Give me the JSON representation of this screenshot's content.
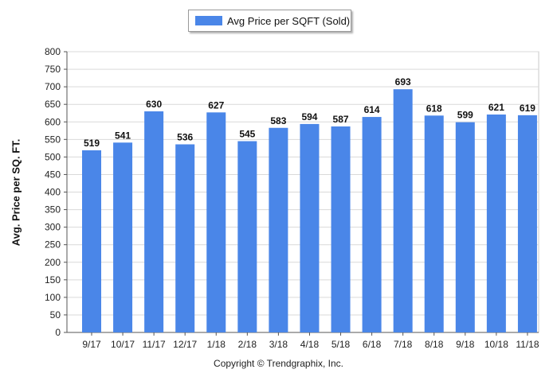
{
  "legend": {
    "label": "Avg Price per SQFT (Sold)"
  },
  "copyright": "Copyright © Trendgraphix, Inc.",
  "colors": {
    "bar": "#4a86e8",
    "grid": "#d9d9d9"
  },
  "chart_data": {
    "type": "bar",
    "title": "",
    "xlabel": "",
    "ylabel": "Avg. Price per SQ. FT.",
    "ylim": [
      0,
      800
    ],
    "yticks": [
      0,
      50,
      100,
      150,
      200,
      250,
      300,
      350,
      400,
      450,
      500,
      550,
      600,
      650,
      700,
      750,
      800
    ],
    "grid": true,
    "legend_position": "top-center",
    "categories": [
      "9/17",
      "10/17",
      "11/17",
      "12/17",
      "1/18",
      "2/18",
      "3/18",
      "4/18",
      "5/18",
      "6/18",
      "7/18",
      "8/18",
      "9/18",
      "10/18",
      "11/18"
    ],
    "series": [
      {
        "name": "Avg Price per SQFT (Sold)",
        "values": [
          519,
          541,
          630,
          536,
          627,
          545,
          583,
          594,
          587,
          614,
          693,
          618,
          599,
          621,
          619
        ]
      }
    ]
  }
}
